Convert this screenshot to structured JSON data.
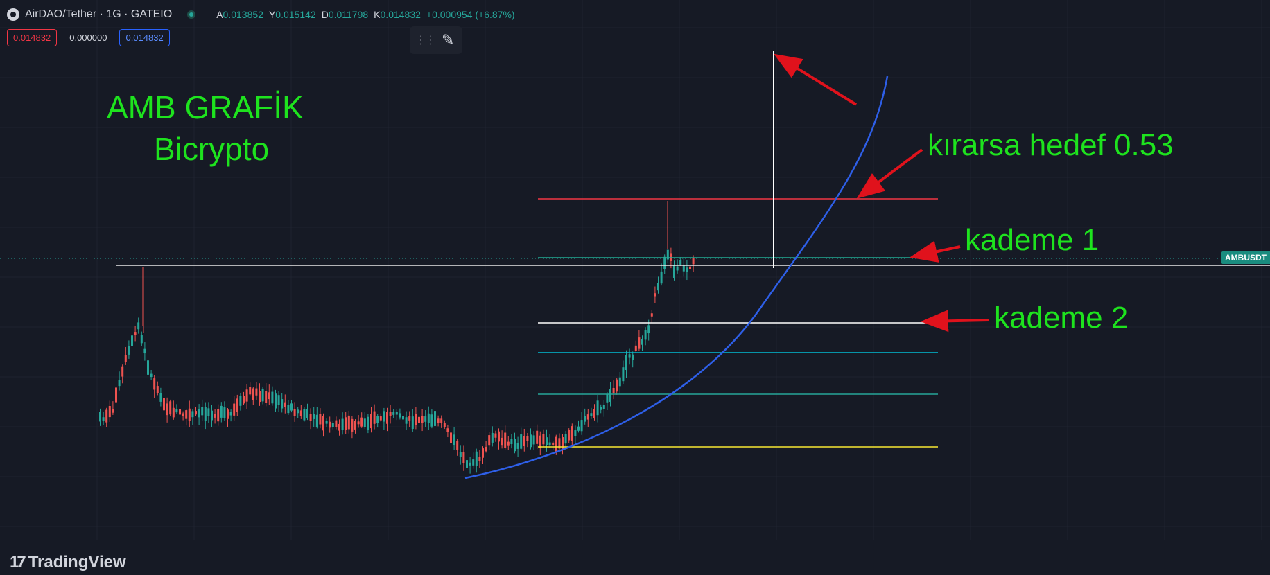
{
  "header": {
    "symbol": "AirDAO/Tether · 1G · GATEIO",
    "ohlc": [
      {
        "key": "A",
        "value": "0.013852"
      },
      {
        "key": "Y",
        "value": "0.015142"
      },
      {
        "key": "D",
        "value": "0.011798"
      },
      {
        "key": "K",
        "value": "0.014832"
      }
    ],
    "change": "+0.000954 (+6.87%)"
  },
  "trade": {
    "sell_price": "0.014832",
    "spread": "0.000000",
    "buy_price": "0.014832"
  },
  "annotations": {
    "title_line1": "AMB GRAFİK",
    "title_line2": "Bicrypto",
    "target": "kırarsa hedef 0.53",
    "level1": "kademe 1",
    "level2": "kademe 2"
  },
  "price_scale_label": "AMBUSDT",
  "brand": "TradingView",
  "colors": {
    "background": "#161a25",
    "up": "#26a69a",
    "down": "#ef5350",
    "annotation": "#1ee31e",
    "curve": "#2e5fe8",
    "arrow": "#e0121c"
  },
  "icons": [
    "symbol-logo-icon",
    "live-status-icon",
    "drag-handle-icon",
    "brush-icon",
    "tradingview-logo-icon"
  ]
}
